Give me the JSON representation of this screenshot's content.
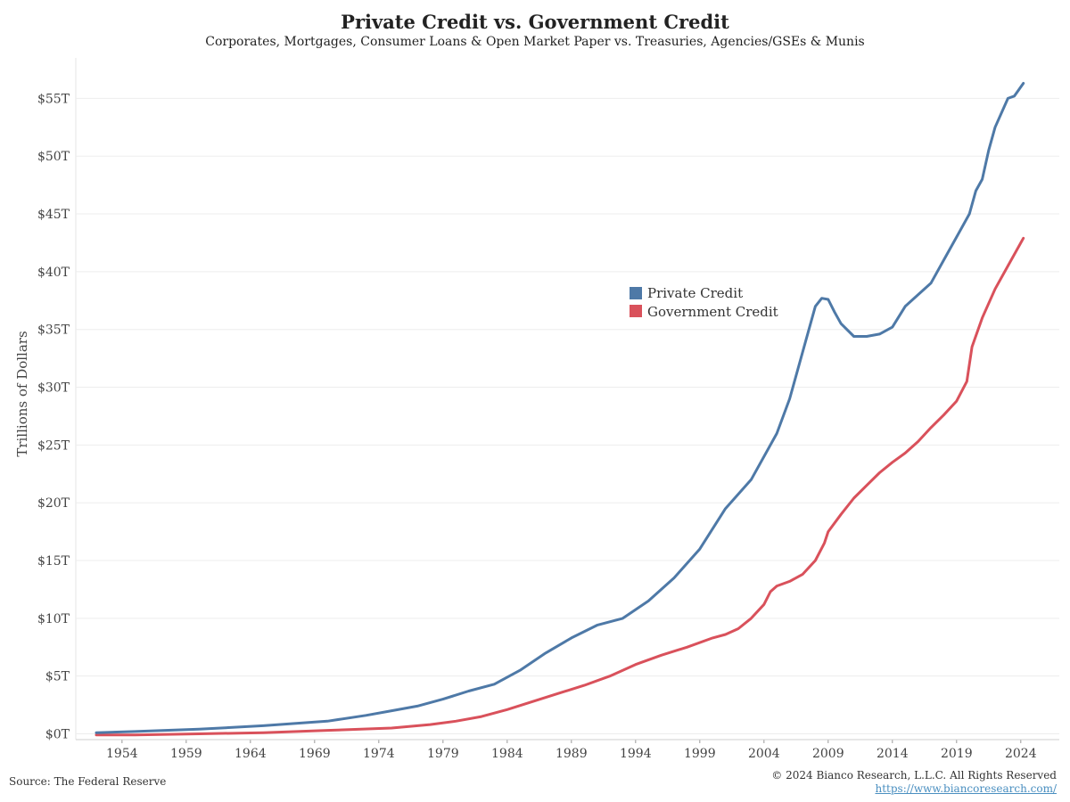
{
  "header": {
    "title": "Private Credit vs. Government Credit",
    "subtitle": "Corporates, Mortgages, Consumer Loans & Open Market Paper vs. Treasuries, Agencies/GSEs & Munis"
  },
  "footer": {
    "source": "Source: The Federal Reserve",
    "copyright": "© 2024 Bianco Research, L.L.C. All Rights Reserved",
    "url": "https://www.biancoresearch.com/"
  },
  "chart_data": {
    "type": "line",
    "ylabel": "Trillions of Dollars",
    "ylim": [
      -0.5,
      58.5
    ],
    "xlim": [
      1950.4,
      2027.0
    ],
    "y_ticks": [
      0,
      5,
      10,
      15,
      20,
      25,
      30,
      35,
      40,
      45,
      50,
      55
    ],
    "y_tick_labels": [
      "$0T",
      "$5T",
      "$10T",
      "$15T",
      "$20T",
      "$25T",
      "$30T",
      "$35T",
      "$40T",
      "$45T",
      "$50T",
      "$55T"
    ],
    "x_ticks": [
      1954,
      1959,
      1964,
      1969,
      1974,
      1979,
      1984,
      1989,
      1994,
      1999,
      2004,
      2009,
      2014,
      2019,
      2024
    ],
    "x_tick_labels": [
      "1954",
      "1959",
      "1964",
      "1969",
      "1974",
      "1979",
      "1984",
      "1989",
      "1994",
      "1999",
      "2004",
      "2009",
      "2014",
      "2019",
      "2024"
    ],
    "grid": "horizontal",
    "legend": "center-right",
    "series": [
      {
        "name": "Private Credit",
        "color": "#4e79a7",
        "points": [
          [
            1952.0,
            0.1
          ],
          [
            1955,
            0.2
          ],
          [
            1960,
            0.4
          ],
          [
            1965,
            0.7
          ],
          [
            1970,
            1.1
          ],
          [
            1973,
            1.6
          ],
          [
            1975,
            2.0
          ],
          [
            1977,
            2.4
          ],
          [
            1979,
            3.0
          ],
          [
            1981,
            3.7
          ],
          [
            1983,
            4.3
          ],
          [
            1985,
            5.5
          ],
          [
            1987,
            7.0
          ],
          [
            1989,
            8.3
          ],
          [
            1991,
            9.4
          ],
          [
            1993,
            10.0
          ],
          [
            1995,
            11.5
          ],
          [
            1997,
            13.5
          ],
          [
            1999,
            16.0
          ],
          [
            2001,
            19.5
          ],
          [
            2003,
            22.0
          ],
          [
            2005,
            26.0
          ],
          [
            2006,
            29.0
          ],
          [
            2007,
            33.0
          ],
          [
            2008,
            37.0
          ],
          [
            2008.5,
            37.7
          ],
          [
            2009,
            37.6
          ],
          [
            2009.5,
            36.5
          ],
          [
            2010,
            35.5
          ],
          [
            2011,
            34.4
          ],
          [
            2012,
            34.4
          ],
          [
            2013,
            34.6
          ],
          [
            2014,
            35.2
          ],
          [
            2015,
            37.0
          ],
          [
            2016,
            38.0
          ],
          [
            2017,
            39.0
          ],
          [
            2018,
            41.0
          ],
          [
            2019,
            43.0
          ],
          [
            2020,
            45.0
          ],
          [
            2020.5,
            47.0
          ],
          [
            2021,
            48.0
          ],
          [
            2021.5,
            50.5
          ],
          [
            2022,
            52.5
          ],
          [
            2023,
            55.0
          ],
          [
            2023.5,
            55.2
          ],
          [
            2024.2,
            56.3
          ]
        ]
      },
      {
        "name": "Government Credit",
        "color": "#d9515b",
        "points": [
          [
            1952.0,
            -0.1
          ],
          [
            1955,
            -0.1
          ],
          [
            1960,
            0.0
          ],
          [
            1965,
            0.1
          ],
          [
            1970,
            0.3
          ],
          [
            1975,
            0.5
          ],
          [
            1978,
            0.8
          ],
          [
            1980,
            1.1
          ],
          [
            1982,
            1.5
          ],
          [
            1984,
            2.1
          ],
          [
            1986,
            2.8
          ],
          [
            1988,
            3.5
          ],
          [
            1990,
            4.2
          ],
          [
            1992,
            5.0
          ],
          [
            1994,
            6.0
          ],
          [
            1996,
            6.8
          ],
          [
            1998,
            7.5
          ],
          [
            2000,
            8.3
          ],
          [
            2001,
            8.6
          ],
          [
            2002,
            9.1
          ],
          [
            2003,
            10.0
          ],
          [
            2004,
            11.2
          ],
          [
            2004.5,
            12.3
          ],
          [
            2005,
            12.8
          ],
          [
            2006,
            13.2
          ],
          [
            2007,
            13.8
          ],
          [
            2008,
            15.0
          ],
          [
            2008.7,
            16.5
          ],
          [
            2009,
            17.5
          ],
          [
            2010,
            19.0
          ],
          [
            2011,
            20.4
          ],
          [
            2012,
            21.5
          ],
          [
            2013,
            22.6
          ],
          [
            2014,
            23.5
          ],
          [
            2015,
            24.3
          ],
          [
            2016,
            25.3
          ],
          [
            2017,
            26.5
          ],
          [
            2018,
            27.6
          ],
          [
            2019,
            28.8
          ],
          [
            2019.8,
            30.5
          ],
          [
            2020.2,
            33.5
          ],
          [
            2021,
            36.0
          ],
          [
            2022,
            38.5
          ],
          [
            2023,
            40.5
          ],
          [
            2024.2,
            42.9
          ]
        ]
      }
    ]
  }
}
